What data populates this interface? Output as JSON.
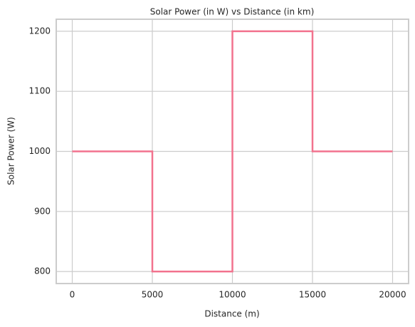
{
  "chart_data": {
    "type": "line",
    "title": "Solar Power (in W) vs Distance (in km)",
    "x_label": "Distance (m)",
    "y_label": "Solar Power (W)",
    "series": [
      {
        "name": "Solar Power",
        "color": "#f2728e",
        "x": [
          0,
          5000,
          5000,
          10000,
          10000,
          15000,
          15000,
          20000
        ],
        "values": [
          1000,
          1000,
          800,
          800,
          1200,
          1200,
          1000,
          1000
        ]
      }
    ],
    "xlim": [
      -1000,
      21000
    ],
    "xticks": [
      0,
      5000,
      10000,
      15000,
      20000
    ],
    "ylim": [
      780,
      1220
    ],
    "yticks": [
      800,
      900,
      1000,
      1100,
      1200
    ],
    "grid": true
  }
}
